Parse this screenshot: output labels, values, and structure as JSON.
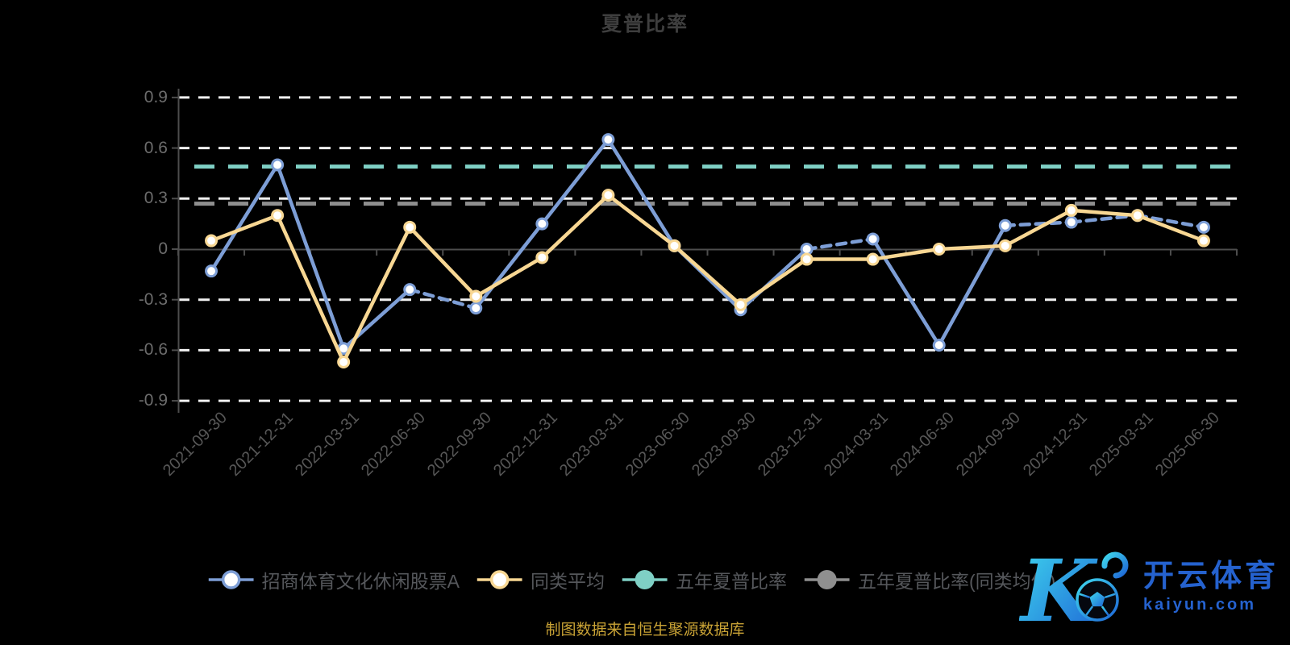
{
  "chart_data": {
    "type": "line",
    "title": "夏普比率",
    "categories": [
      "2021-09-30",
      "2021-12-31",
      "2022-03-31",
      "2022-06-30",
      "2022-09-30",
      "2022-12-31",
      "2023-03-31",
      "2023-06-30",
      "2023-09-30",
      "2023-12-31",
      "2024-03-31",
      "2024-06-30",
      "2024-09-30",
      "2024-12-31",
      "2025-03-31",
      "2025-06-30"
    ],
    "ylim": [
      -0.9,
      0.9
    ],
    "yticks": [
      0.9,
      0.6,
      0.3,
      0,
      -0.3,
      -0.6,
      -0.9
    ],
    "ytick_labels": [
      "0.9",
      "0.6",
      "0.3",
      "0",
      "-0.3",
      "-0.6",
      "-0.9"
    ],
    "grid": "horizontal dashed white lines, dashed ticks hidden at zero (solid axis at 0)",
    "legend_position": "bottom",
    "series": [
      {
        "name": "招商体育文化休闲股票A",
        "type": "line",
        "color": "#7d9ed6",
        "marker": "hollow-circle",
        "values": [
          -0.13,
          0.5,
          -0.59,
          -0.24,
          -0.35,
          0.15,
          0.65,
          0.02,
          -0.36,
          0.0,
          0.06,
          -0.57,
          0.14,
          0.16,
          0.2,
          0.13
        ],
        "dashed_segment_start_indices": [
          3,
          9,
          12,
          13,
          14
        ]
      },
      {
        "name": "同类平均",
        "type": "line",
        "color": "#f8d793",
        "marker": "hollow-circle",
        "values": [
          0.05,
          0.2,
          -0.67,
          0.13,
          -0.28,
          -0.05,
          0.32,
          0.02,
          -0.33,
          -0.06,
          -0.06,
          0.0,
          0.02,
          0.23,
          0.2,
          0.05
        ],
        "dashed_segment_start_indices": []
      }
    ],
    "reference_lines": [
      {
        "name": "五年夏普比率",
        "color": "#7fd0c5",
        "style": "dashed",
        "value": 0.49
      },
      {
        "name": "五年夏普比率(同类均值)",
        "color": "#8f8f8f",
        "style": "dashed",
        "value": 0.27
      }
    ]
  },
  "footer": {
    "source_note": "制图数据来自恒生聚源数据库"
  },
  "logo": {
    "monogram": "K",
    "brand_cn": "开云体育",
    "brand_domain": "kaiyun.com"
  },
  "colors": {
    "background": "#000000",
    "title": "#3e3e3e",
    "axis": "#4d4d4d",
    "grid": "#f1f1f1",
    "y_label": "#6c6c6c",
    "x_label": "#575757",
    "legend_text": "#55575b",
    "footer_text": "#c8a235",
    "logo_blue": "#2562cf",
    "series_blue": "#7d9ed6",
    "series_yellow": "#f8d793",
    "ref_teal": "#7fd0c5",
    "ref_gray": "#8f8f8f",
    "marker_fill": "#ffffff"
  }
}
